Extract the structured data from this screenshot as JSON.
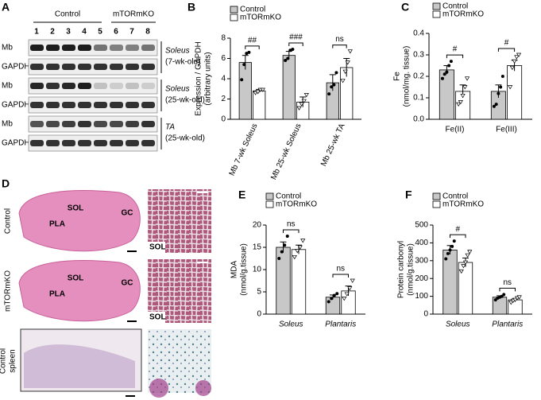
{
  "blot": {
    "panel": "A",
    "groups": [
      "Control",
      "mTORmKO"
    ],
    "lanes": [
      "1",
      "2",
      "3",
      "4",
      "5",
      "6",
      "7",
      "8"
    ],
    "blocks": [
      {
        "rows": [
          "Mb",
          "GAPDH"
        ],
        "tissue": "Soleus",
        "age": "(7-wk-old)"
      },
      {
        "rows": [
          "Mb",
          "GAPDH"
        ],
        "tissue": "Soleus",
        "age": "(25-wk-old)"
      },
      {
        "rows": [
          "Mb",
          "GAPDH"
        ],
        "tissue": "TA",
        "age": "(25-wk-old)"
      }
    ]
  },
  "histology": {
    "panel": "D",
    "rows": [
      {
        "label": [
          "Control"
        ],
        "regions": [
          "SOL",
          "PLA",
          "GC"
        ],
        "inset": "SOL"
      },
      {
        "label": [
          "mTORmKO"
        ],
        "regions": [
          "SOL",
          "PLA",
          "GC"
        ],
        "inset": "SOL"
      },
      {
        "label": [
          "Control",
          "spleen"
        ]
      }
    ]
  },
  "chart_data": [
    {
      "type": "bar",
      "label": "B",
      "ylabel": [
        "Expression / GAPDH",
        "(arbitrary units)"
      ],
      "categories": [
        "Mb 7-wk Soleus",
        "Mb 25-wk Soleus",
        "Mb 25-wk TA"
      ],
      "ylim": [
        0,
        8
      ],
      "yticks": [
        0,
        2,
        4,
        6,
        8
      ],
      "series": [
        {
          "name": "Control",
          "color": "#c8c8c8",
          "values": [
            5.6,
            6.3,
            3.6
          ],
          "errors": [
            0.7,
            0.4,
            0.8
          ],
          "points": [
            [
              3.9,
              5.4,
              6.5,
              6.6
            ],
            [
              5.8,
              6.0,
              6.8,
              6.9
            ],
            [
              2.5,
              3.2,
              3.4,
              4.6
            ]
          ]
        },
        {
          "name": "mTORmKO",
          "color": "#ffffff",
          "values": [
            2.8,
            1.7,
            5.1
          ],
          "errors": [
            0.15,
            0.5,
            0.9
          ],
          "points": [
            [
              2.6,
              2.7,
              2.9,
              2.9
            ],
            [
              1.1,
              1.5,
              1.8,
              2.4
            ],
            [
              3.8,
              4.7,
              5.6,
              6.7
            ]
          ]
        }
      ],
      "significance": [
        "##",
        "###",
        "ns"
      ]
    },
    {
      "type": "bar",
      "label": "C",
      "ylabel": [
        "Fe",
        "(nmol/mg. tissue)"
      ],
      "categories": [
        "Fe(II)",
        "Fe(III)"
      ],
      "ylim": [
        0,
        0.4
      ],
      "yticks": [
        {
          "value": 0,
          "label": "0.0"
        },
        0.1,
        0.2,
        0.3,
        0.4
      ],
      "series": [
        {
          "name": "Control",
          "color": "#c8c8c8",
          "values": [
            0.23,
            0.13
          ],
          "errors": [
            0.02,
            0.03
          ],
          "points": [
            [
              0.19,
              0.21,
              0.22,
              0.25,
              0.27
            ],
            [
              0.06,
              0.07,
              0.12,
              0.15,
              0.2
            ]
          ]
        },
        {
          "name": "mTORmKO",
          "color": "#ffffff",
          "values": [
            0.13,
            0.25
          ],
          "errors": [
            0.03,
            0.025
          ],
          "points": [
            [
              0.07,
              0.08,
              0.11,
              0.15,
              0.19
            ],
            [
              0.15,
              0.24,
              0.27,
              0.29,
              0.3
            ]
          ]
        }
      ],
      "significance": [
        "#",
        "#"
      ]
    },
    {
      "type": "bar",
      "label": "E",
      "ylabel": [
        "MDA",
        "(nmol/g.tissue)"
      ],
      "categories": [
        "Soleus",
        "Plantaris"
      ],
      "ylim": [
        0,
        20
      ],
      "yticks": [
        0,
        5,
        10,
        15,
        20
      ],
      "series": [
        {
          "name": "Control",
          "color": "#c8c8c8",
          "values": [
            15,
            3.8
          ],
          "errors": [
            1.2,
            0.5
          ],
          "points": [
            [
              12.5,
              14,
              15.5,
              17.5
            ],
            [
              2.8,
              3.5,
              4.2,
              4.6
            ]
          ]
        },
        {
          "name": "mTORmKO",
          "color": "#ffffff",
          "values": [
            14.5,
            5.2
          ],
          "errors": [
            1,
            1.1
          ],
          "points": [
            [
              12.8,
              14.2,
              15,
              16.5
            ],
            [
              3.5,
              4.5,
              5.8,
              7.5
            ]
          ]
        }
      ],
      "significance": [
        "ns",
        "ns"
      ]
    },
    {
      "type": "bar",
      "label": "F",
      "ylabel": [
        "Protein carbonyl",
        "(nmol/g.tissue)"
      ],
      "categories": [
        "Soleus",
        "Plantaris"
      ],
      "ylim": [
        0,
        500
      ],
      "yticks": [
        0,
        100,
        200,
        300,
        400,
        500
      ],
      "series": [
        {
          "name": "Control",
          "color": "#c8c8c8",
          "values": [
            360,
            95
          ],
          "errors": [
            25,
            8
          ],
          "points": [
            [
              310,
              340,
              360,
              380,
              410
            ],
            [
              80,
              90,
              95,
              100,
              110
            ]
          ]
        },
        {
          "name": "mTORmKO",
          "color": "#ffffff",
          "values": [
            290,
            80
          ],
          "errors": [
            25,
            8
          ],
          "points": [
            [
              240,
              270,
              290,
              330,
              350
            ],
            [
              65,
              75,
              80,
              90,
              95
            ]
          ]
        }
      ],
      "significance": [
        "#",
        "ns"
      ]
    }
  ]
}
